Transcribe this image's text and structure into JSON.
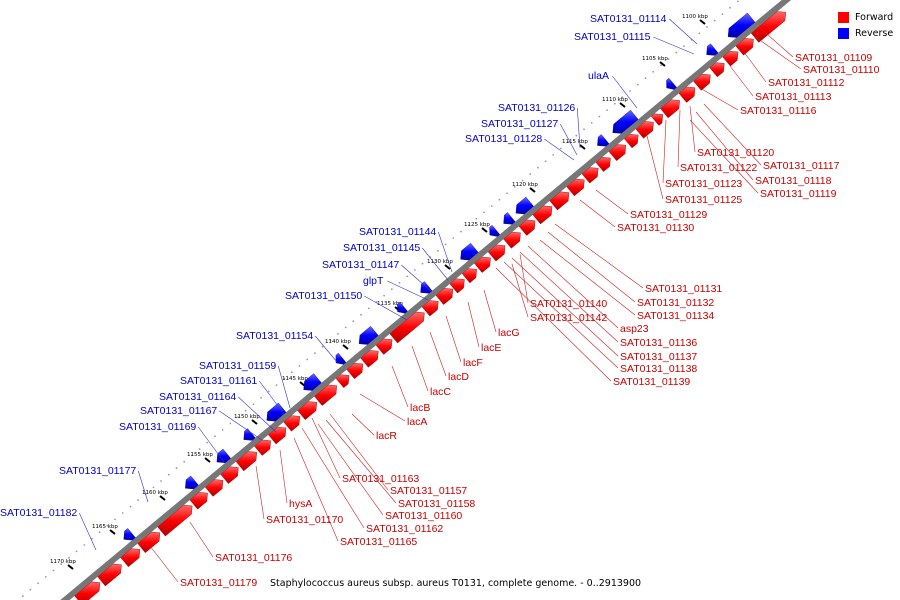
{
  "caption": "Staphylococcus aureus subsp. aureus T0131, complete genome. - 0..2913900",
  "legend": [
    {
      "label": "Forward",
      "color": "#ff0000"
    },
    {
      "label": "Reverse",
      "color": "#0000ff"
    }
  ],
  "colors": {
    "forward": "#ff0000",
    "reverse": "#0000ff",
    "backbone": "#888888"
  },
  "ticks": [
    "1100 kbp",
    "1105 kbp",
    "1110 kbp",
    "1115 kbp",
    "1120 kbp",
    "1125 kbp",
    "1130 kbp",
    "1135 kbp",
    "1140 kbp",
    "1145 kbp",
    "1150 kbp",
    "1155 kbp",
    "1160 kbp",
    "1165 kbp",
    "1170 kbp"
  ],
  "reverse_labels": [
    "SAT0131_01114",
    "SAT0131_01115",
    "ulaA",
    "SAT0131_01126",
    "SAT0131_01127",
    "SAT0131_01128",
    "SAT0131_01144",
    "SAT0131_01145",
    "SAT0131_01147",
    "glpT",
    "SAT0131_01150",
    "SAT0131_01154",
    "SAT0131_01159",
    "SAT0131_01161",
    "SAT0131_01164",
    "SAT0131_01167",
    "SAT0131_01169",
    "SAT0131_01177",
    "SAT0131_01182"
  ],
  "forward_labels": [
    "SAT0131_01109",
    "SAT0131_01110",
    "SAT0131_01112",
    "SAT0131_01113",
    "SAT0131_01116",
    "SAT0131_01120",
    "SAT0131_01117",
    "SAT0131_01122",
    "SAT0131_01118",
    "SAT0131_01123",
    "SAT0131_01119",
    "SAT0131_01125",
    "SAT0131_01129",
    "SAT0131_01130",
    "SAT0131_01131",
    "SAT0131_01132",
    "SAT0131_01140",
    "SAT0131_01134",
    "SAT0131_01142",
    "lacG",
    "asp23",
    "SAT0131_01136",
    "lacE",
    "SAT0131_01137",
    "lacF",
    "SAT0131_01138",
    "lacD",
    "SAT0131_01139",
    "lacC",
    "lacB",
    "lacA",
    "lacR",
    "SAT0131_01163",
    "SAT0131_01157",
    "SAT0131_01158",
    "hysA",
    "SAT0131_01160",
    "SAT0131_01170",
    "SAT0131_01162",
    "SAT0131_01165",
    "SAT0131_01176",
    "SAT0131_01179"
  ]
}
